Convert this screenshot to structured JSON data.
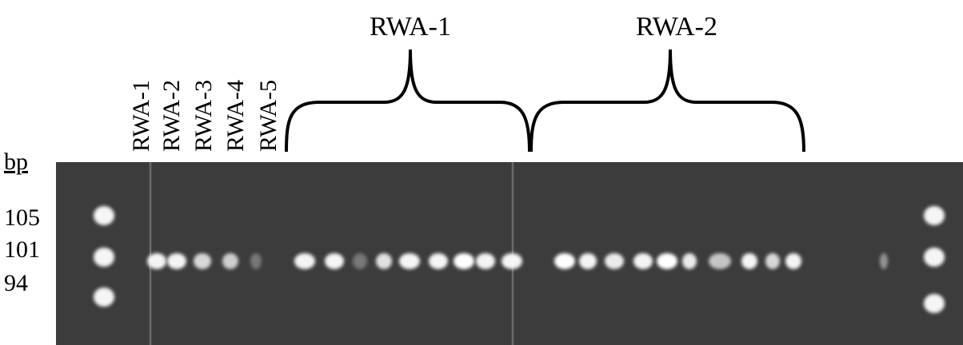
{
  "group_labels": [
    "RWA-1",
    "RWA-2"
  ],
  "lane_labels": [
    "RWA-1",
    "RWA-2",
    "RWA-3",
    "RWA-4",
    "RWA-5"
  ],
  "size_axis": {
    "title": "bp",
    "labels": [
      "105",
      "101",
      "94"
    ]
  }
}
